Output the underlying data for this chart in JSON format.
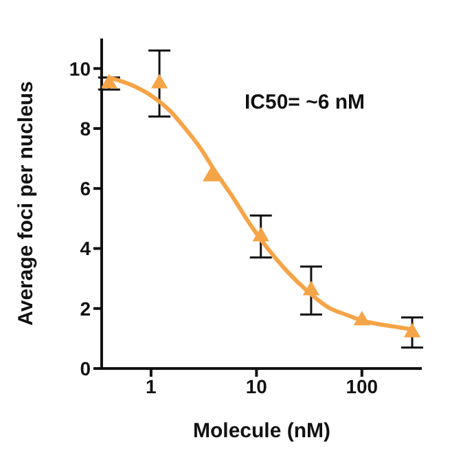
{
  "chart_data": {
    "type": "scatter",
    "xlabel": "Molecule (nM)",
    "ylabel": "Average foci per nucleus",
    "log": "x",
    "xlim": [
      0.34,
      370
    ],
    "xticks": [
      1,
      10,
      100
    ],
    "ylim": [
      0,
      11
    ],
    "yticks": [
      0,
      2,
      4,
      6,
      8,
      10
    ],
    "annotations": [
      "IC50= ~6 nM"
    ],
    "series": [
      {
        "marker": "triangle",
        "color": "#f5a447",
        "x": [
          0.4,
          1.2,
          3.7,
          11,
          33,
          100,
          300
        ],
        "values": [
          9.5,
          9.5,
          6.4,
          4.4,
          2.6,
          1.6,
          1.2
        ],
        "errors": [
          0.2,
          1.1,
          null,
          0.7,
          0.8,
          null,
          0.5
        ]
      },
      {
        "type": "line",
        "marker": "none",
        "color": "#f5a447",
        "x": [
          0.4,
          0.7,
          1,
          1.5,
          2,
          3,
          4,
          6,
          8,
          10,
          15,
          20,
          30,
          50,
          70,
          100,
          200,
          300
        ],
        "values": [
          9.7,
          9.4,
          9.1,
          8.6,
          8.1,
          7.3,
          6.6,
          5.7,
          5.0,
          4.5,
          3.7,
          3.2,
          2.6,
          2.0,
          1.8,
          1.6,
          1.4,
          1.3
        ]
      }
    ]
  }
}
